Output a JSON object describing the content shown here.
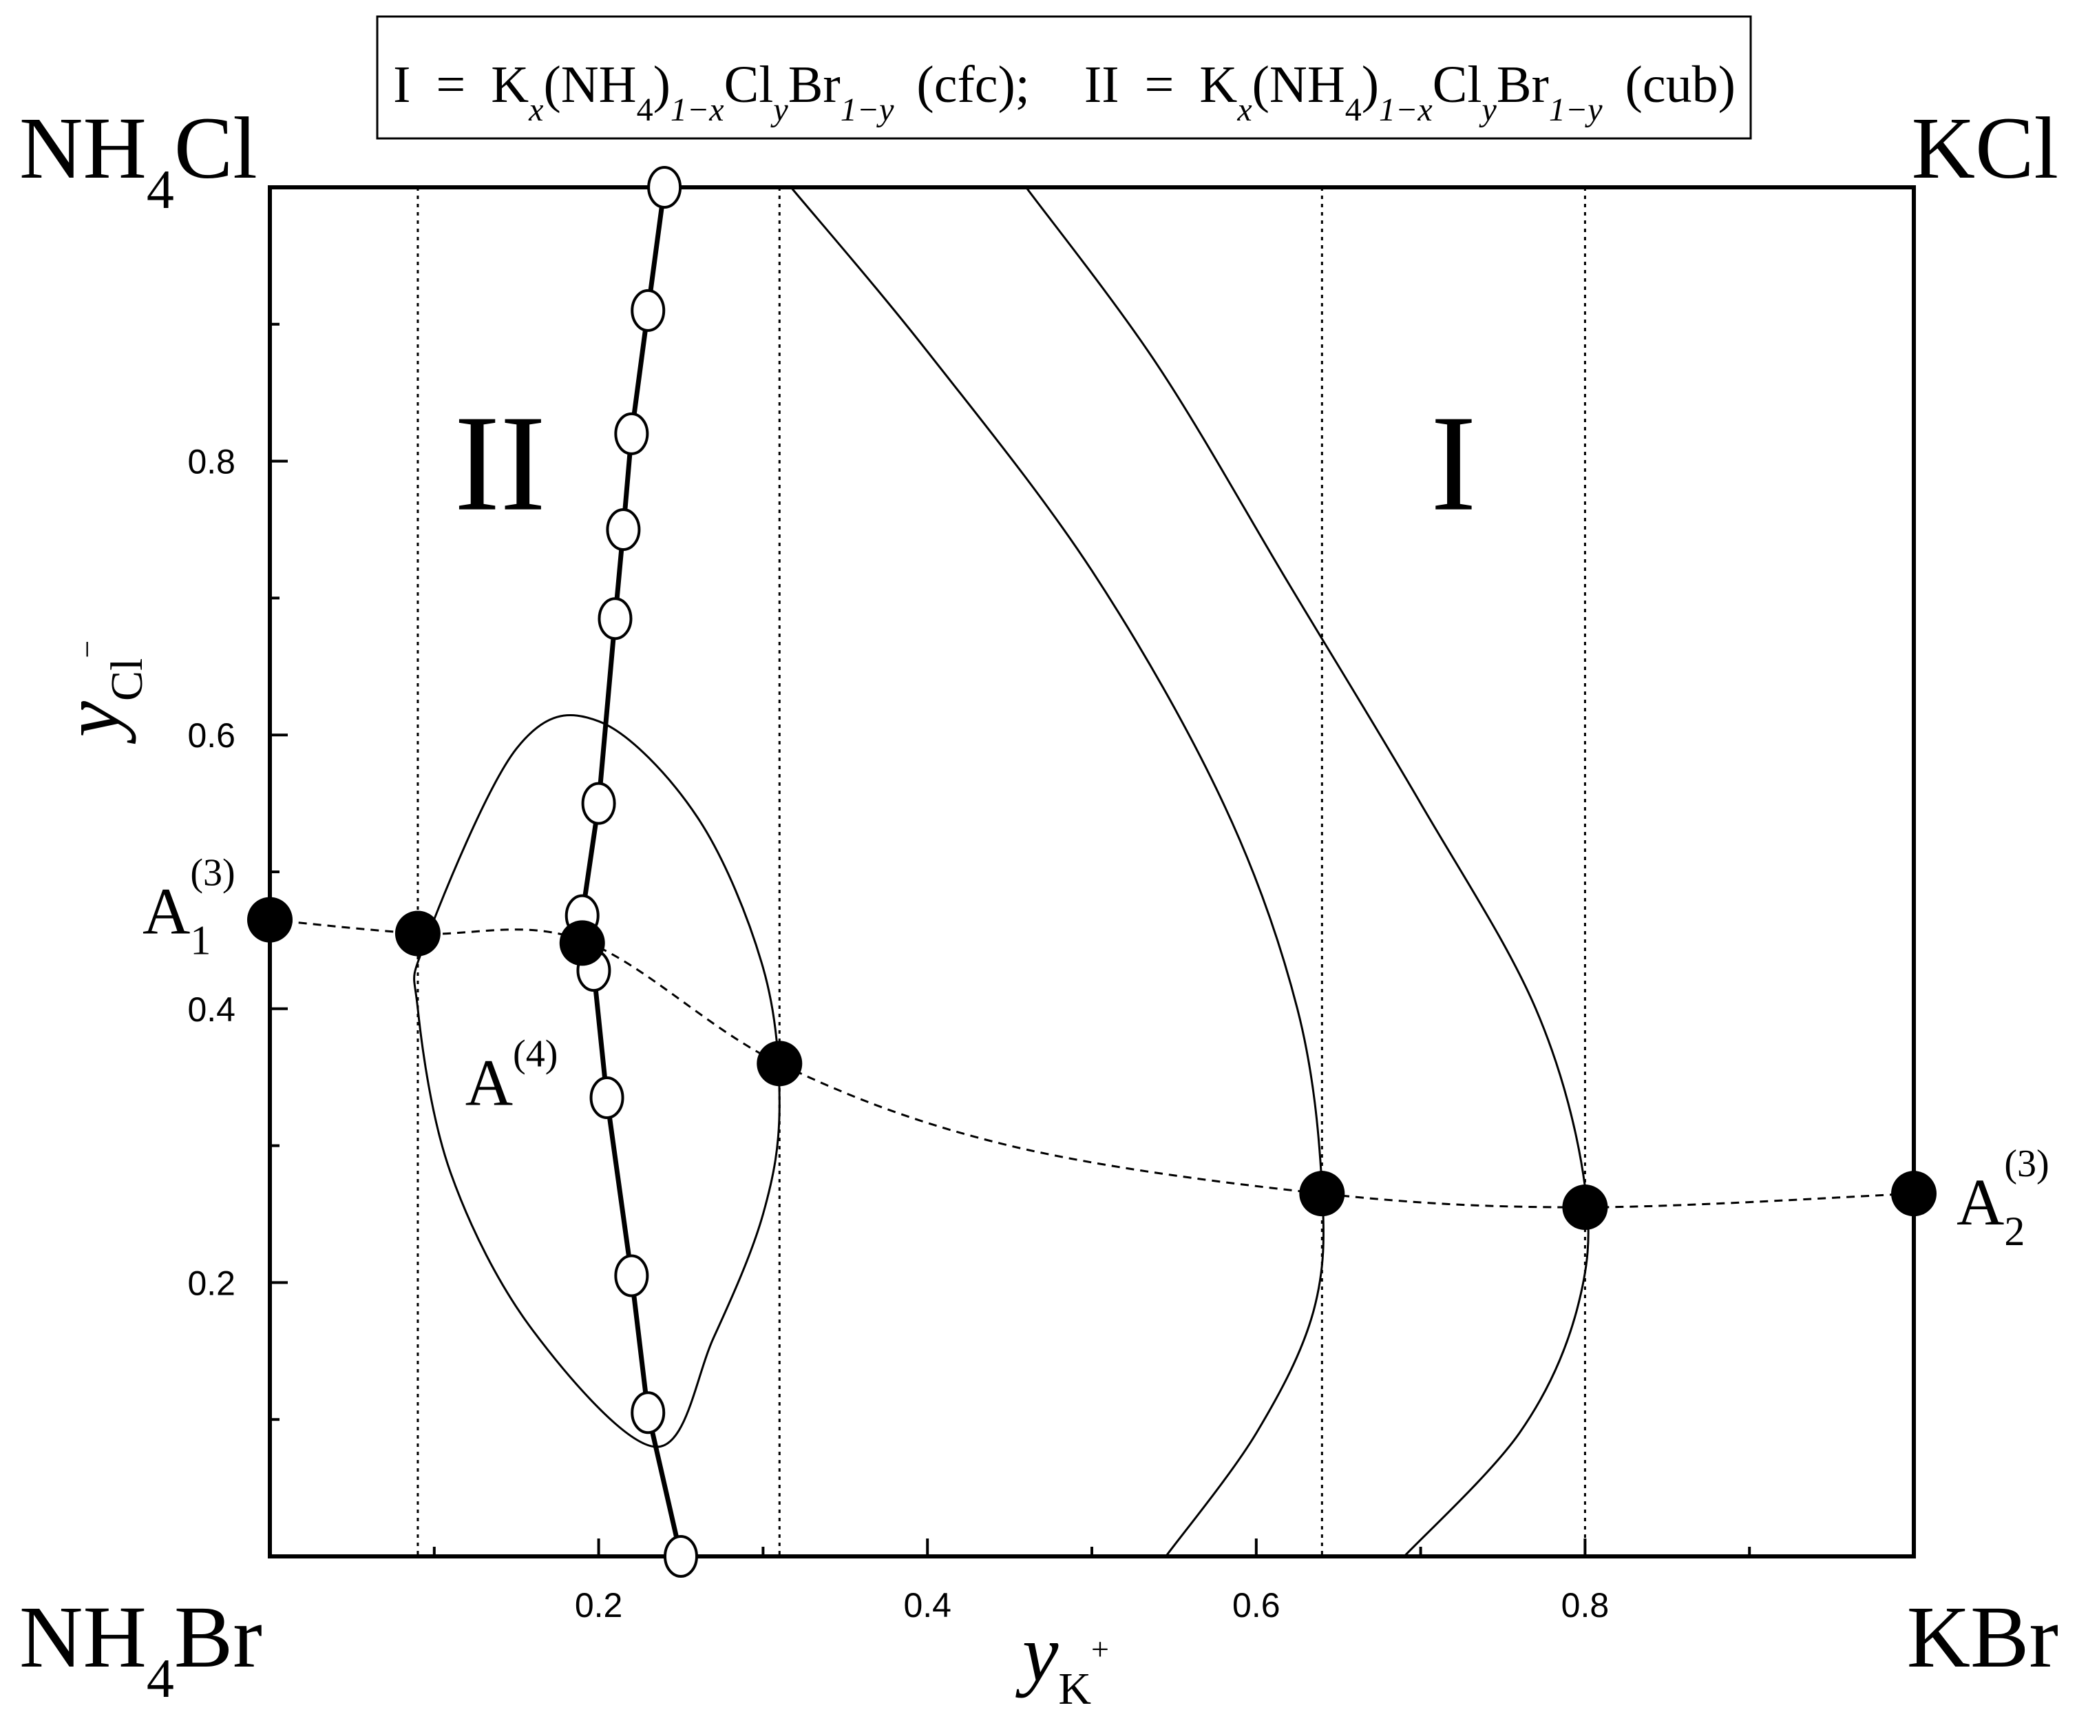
{
  "chart_data": {
    "type": "phase-diagram",
    "title": "",
    "legend_text": {
      "I_label": "I",
      "II_label": "II",
      "eq": "=",
      "K": "K",
      "x": "x",
      "NH4_open": "(NH",
      "four": "4",
      "close": ")",
      "one_minus_x": "1−x",
      "Cl": "Cl",
      "y": "y",
      "Br": "Br",
      "one_minus_y": "1−y",
      "cfc": "(cfc);",
      "cub": "(cub)"
    },
    "corner_labels": {
      "top_left": {
        "a": "NH",
        "sub": "4",
        "b": "Cl"
      },
      "top_right": "KCl",
      "bottom_left": {
        "a": "NH",
        "sub": "4",
        "b": "Br"
      },
      "bottom_right": "KBr"
    },
    "xlabel": {
      "main": "y",
      "sub": "K",
      "sup": "+"
    },
    "ylabel": {
      "main": "y",
      "sub": "Cl",
      "sup": "−"
    },
    "xlim": [
      0,
      1
    ],
    "ylim": [
      0,
      1
    ],
    "x_ticks": [
      0.2,
      0.4,
      0.6,
      0.8
    ],
    "x_tick_labels": [
      "0.2",
      "0.4",
      "0.6",
      "0.8"
    ],
    "x_minor_ticks": [
      0.1,
      0.3,
      0.5,
      0.7,
      0.9
    ],
    "y_ticks": [
      0.2,
      0.4,
      0.6,
      0.8
    ],
    "y_tick_labels": [
      "0.2",
      "0.4",
      "0.6",
      "0.8"
    ],
    "y_minor_ticks": [
      0.1,
      0.3,
      0.5,
      0.7,
      0.9
    ],
    "vertical_dotted_lines_x": [
      0.09,
      0.31,
      0.64,
      0.8
    ],
    "region_labels": [
      {
        "text": "II",
        "x": 0.14,
        "y": 0.8
      },
      {
        "text": "I",
        "x": 0.72,
        "y": 0.8
      }
    ],
    "thick_line_open_circles": {
      "x": [
        0.24,
        0.23,
        0.22,
        0.215,
        0.21,
        0.2,
        0.19,
        0.197,
        0.205,
        0.22,
        0.23,
        0.25
      ],
      "y": [
        1.0,
        0.91,
        0.82,
        0.75,
        0.685,
        0.55,
        0.468,
        0.428,
        0.335,
        0.205,
        0.105,
        0.0
      ]
    },
    "closed_loop_curve": {
      "x": [
        0.095,
        0.15,
        0.2,
        0.26,
        0.3,
        0.31,
        0.3,
        0.27,
        0.235,
        0.16,
        0.11,
        0.09,
        0.095
      ],
      "y": [
        0.45,
        0.59,
        0.61,
        0.54,
        0.43,
        0.33,
        0.25,
        0.16,
        0.08,
        0.165,
        0.28,
        0.4,
        0.45
      ]
    },
    "curve_1": {
      "x": [
        0.317,
        0.4,
        0.5,
        0.58,
        0.625,
        0.64,
        0.635,
        0.6,
        0.545
      ],
      "y": [
        1.0,
        0.88,
        0.72,
        0.55,
        0.4,
        0.27,
        0.18,
        0.09,
        0.0
      ]
    },
    "curve_2": {
      "x": [
        0.46,
        0.54,
        0.62,
        0.7,
        0.77,
        0.8,
        0.795,
        0.76,
        0.69
      ],
      "y": [
        1.0,
        0.87,
        0.71,
        0.55,
        0.4,
        0.27,
        0.18,
        0.09,
        0.0
      ]
    },
    "dashed_tie_line": {
      "x": [
        0.0,
        0.09,
        0.19,
        0.31,
        0.45,
        0.64,
        0.8,
        1.0
      ],
      "y": [
        0.465,
        0.455,
        0.45,
        0.36,
        0.3,
        0.265,
        0.255,
        0.265
      ]
    },
    "filled_points": {
      "x": [
        0.0,
        0.09,
        0.19,
        0.31,
        0.64,
        0.8,
        1.0
      ],
      "y": [
        0.465,
        0.455,
        0.448,
        0.36,
        0.265,
        0.255,
        0.265
      ]
    },
    "point_labels": [
      {
        "base": "A",
        "sub": "1",
        "sup": "(3)"
      },
      {
        "base": "A",
        "sub": "",
        "sup": "(4)"
      },
      {
        "base": "A",
        "sub": "2",
        "sup": "(3)"
      }
    ]
  }
}
